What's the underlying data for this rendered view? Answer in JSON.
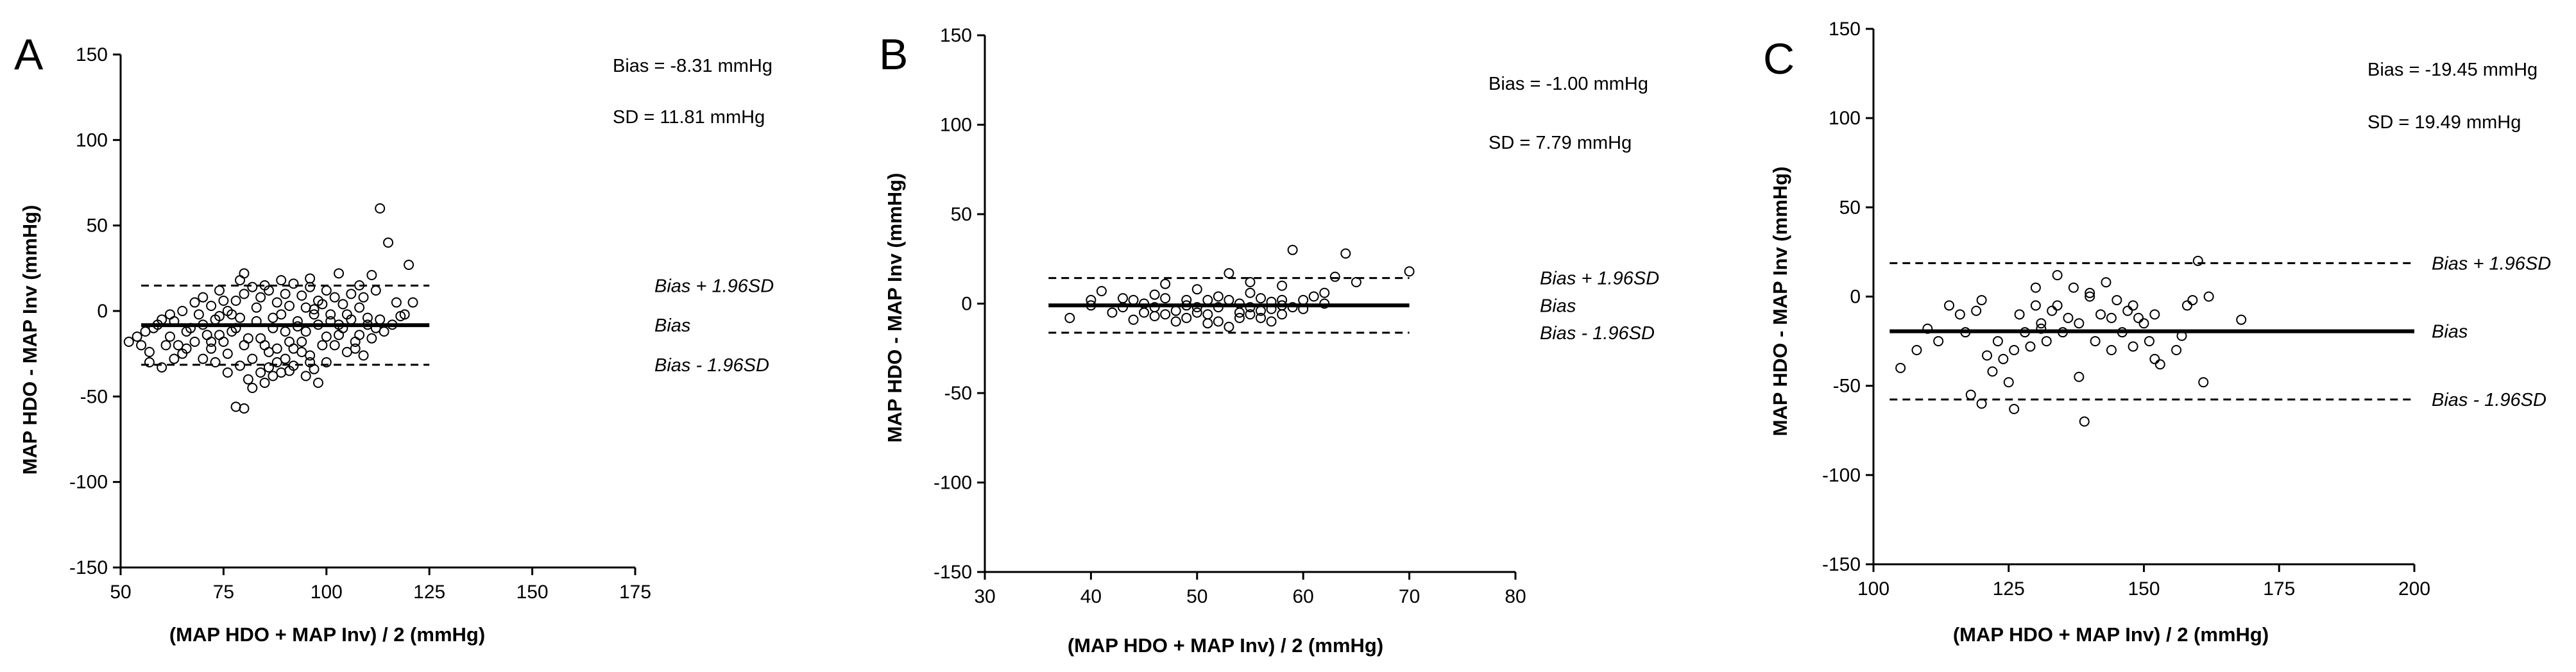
{
  "figure": {
    "description_label": "Bland-Altman plots"
  },
  "chart_data": [
    {
      "type": "scatter",
      "panel": "A",
      "xlabel": "(MAP HDO + MAP Inv) / 2 (mmHg)",
      "ylabel": "MAP HDO - MAP Inv (mmHg)",
      "xlim": [
        50,
        175
      ],
      "ylim": [
        -150,
        150
      ],
      "xticks": [
        50,
        75,
        100,
        125,
        150,
        175
      ],
      "yticks": [
        -150,
        -100,
        -50,
        0,
        50,
        100,
        150
      ],
      "bias": -8.31,
      "sd": 11.81,
      "upper_loa": 14.84,
      "lower_loa": -31.46,
      "line_span": [
        55,
        125
      ],
      "annotations": {
        "bias": "Bias = -8.31 mmHg",
        "sd": "SD = 11.81 mmHg"
      },
      "line_labels": {
        "upper": "Bias + 1.96SD",
        "mean": "Bias",
        "lower": "Bias - 1.96SD"
      },
      "points": [
        [
          113,
          60
        ],
        [
          115,
          40
        ],
        [
          120,
          27
        ],
        [
          111,
          21
        ],
        [
          80,
          22
        ],
        [
          79,
          18
        ],
        [
          89,
          18
        ],
        [
          96,
          19
        ],
        [
          103,
          22
        ],
        [
          112,
          12
        ],
        [
          108,
          15
        ],
        [
          117,
          5
        ],
        [
          119,
          -2
        ],
        [
          121,
          5
        ],
        [
          116,
          -8
        ],
        [
          78,
          -56
        ],
        [
          80,
          -57
        ],
        [
          82,
          -45
        ],
        [
          85,
          -42
        ],
        [
          87,
          -38
        ],
        [
          91,
          -35
        ],
        [
          95,
          -38
        ],
        [
          98,
          -42
        ],
        [
          73,
          -30
        ],
        [
          70,
          -28
        ],
        [
          65,
          -25
        ],
        [
          60,
          -33
        ],
        [
          57,
          -30
        ],
        [
          55,
          -20
        ],
        [
          52,
          -18
        ],
        [
          58,
          -10
        ],
        [
          60,
          -5
        ],
        [
          62,
          -2
        ],
        [
          65,
          0
        ],
        [
          68,
          5
        ],
        [
          70,
          8
        ],
        [
          72,
          3
        ],
        [
          74,
          -3
        ],
        [
          76,
          0
        ],
        [
          78,
          6
        ],
        [
          80,
          10
        ],
        [
          82,
          14
        ],
        [
          84,
          8
        ],
        [
          86,
          12
        ],
        [
          88,
          5
        ],
        [
          90,
          10
        ],
        [
          92,
          16
        ],
        [
          94,
          9
        ],
        [
          96,
          14
        ],
        [
          98,
          6
        ],
        [
          100,
          12
        ],
        [
          102,
          8
        ],
        [
          104,
          4
        ],
        [
          106,
          10
        ],
        [
          108,
          2
        ],
        [
          110,
          -4
        ],
        [
          112,
          -10
        ],
        [
          114,
          -12
        ],
        [
          62,
          -15
        ],
        [
          64,
          -20
        ],
        [
          66,
          -12
        ],
        [
          68,
          -18
        ],
        [
          70,
          -8
        ],
        [
          72,
          -22
        ],
        [
          74,
          -14
        ],
        [
          76,
          -25
        ],
        [
          78,
          -10
        ],
        [
          80,
          -20
        ],
        [
          82,
          -28
        ],
        [
          84,
          -16
        ],
        [
          86,
          -24
        ],
        [
          88,
          -30
        ],
        [
          90,
          -12
        ],
        [
          92,
          -22
        ],
        [
          94,
          -18
        ],
        [
          96,
          -26
        ],
        [
          98,
          -8
        ],
        [
          100,
          -15
        ],
        [
          102,
          -20
        ],
        [
          104,
          -10
        ],
        [
          106,
          -5
        ],
        [
          108,
          -14
        ],
        [
          110,
          -8
        ],
        [
          56,
          -12
        ],
        [
          59,
          -8
        ],
        [
          61,
          -20
        ],
        [
          63,
          -6
        ],
        [
          67,
          -10
        ],
        [
          69,
          -2
        ],
        [
          71,
          -14
        ],
        [
          73,
          -5
        ],
        [
          75,
          -18
        ],
        [
          77,
          -12
        ],
        [
          79,
          -4
        ],
        [
          81,
          -16
        ],
        [
          83,
          -6
        ],
        [
          85,
          -20
        ],
        [
          87,
          -10
        ],
        [
          89,
          -2
        ],
        [
          91,
          -18
        ],
        [
          93,
          -6
        ],
        [
          95,
          -12
        ],
        [
          97,
          -2
        ],
        [
          99,
          -20
        ],
        [
          101,
          -6
        ],
        [
          103,
          -14
        ],
        [
          105,
          -24
        ],
        [
          107,
          -18
        ],
        [
          109,
          -26
        ],
        [
          111,
          -16
        ],
        [
          88,
          -22
        ],
        [
          90,
          -28
        ],
        [
          92,
          -32
        ],
        [
          94,
          -24
        ],
        [
          96,
          -30
        ],
        [
          86,
          -33
        ],
        [
          84,
          -36
        ],
        [
          76,
          -36
        ],
        [
          72,
          -18
        ],
        [
          66,
          -22
        ],
        [
          63,
          -28
        ],
        [
          75,
          6
        ],
        [
          77,
          -2
        ],
        [
          83,
          2
        ],
        [
          87,
          -4
        ],
        [
          91,
          3
        ],
        [
          93,
          -9
        ],
        [
          97,
          1
        ],
        [
          99,
          4
        ],
        [
          101,
          -2
        ],
        [
          79,
          -32
        ],
        [
          81,
          -40
        ],
        [
          89,
          -36
        ],
        [
          97,
          -34
        ],
        [
          100,
          -30
        ],
        [
          54,
          -15
        ],
        [
          57,
          -24
        ],
        [
          74,
          12
        ],
        [
          85,
          15
        ],
        [
          95,
          2
        ],
        [
          105,
          -2
        ],
        [
          109,
          8
        ],
        [
          113,
          -5
        ],
        [
          118,
          -3
        ],
        [
          103,
          -8
        ],
        [
          107,
          -22
        ]
      ]
    },
    {
      "type": "scatter",
      "panel": "B",
      "xlabel": "(MAP HDO + MAP Inv) / 2 (mmHg)",
      "ylabel": "MAP HDO - MAP Inv (mmHg)",
      "xlim": [
        30,
        80
      ],
      "ylim": [
        -150,
        150
      ],
      "xticks": [
        30,
        40,
        50,
        60,
        70,
        80
      ],
      "yticks": [
        -150,
        -100,
        -50,
        0,
        50,
        100,
        150
      ],
      "bias": -1.0,
      "sd": 7.79,
      "upper_loa": 14.27,
      "lower_loa": -16.27,
      "line_span": [
        36,
        70
      ],
      "annotations": {
        "bias": "Bias = -1.00 mmHg",
        "sd": "SD = 7.79 mmHg"
      },
      "line_labels": {
        "upper": "Bias + 1.96SD",
        "mean": "Bias",
        "lower": "Bias - 1.96SD"
      },
      "points": [
        [
          59,
          30
        ],
        [
          64,
          28
        ],
        [
          70,
          18
        ],
        [
          65,
          12
        ],
        [
          63,
          15
        ],
        [
          53,
          17
        ],
        [
          55,
          12
        ],
        [
          58,
          10
        ],
        [
          47,
          11
        ],
        [
          50,
          8
        ],
        [
          41,
          7
        ],
        [
          43,
          3
        ],
        [
          40,
          -1
        ],
        [
          42,
          -5
        ],
        [
          44,
          -9
        ],
        [
          38,
          -8
        ],
        [
          46,
          -2
        ],
        [
          48,
          -4
        ],
        [
          49,
          2
        ],
        [
          51,
          -6
        ],
        [
          52,
          -10
        ],
        [
          53,
          -13
        ],
        [
          54,
          -8
        ],
        [
          55,
          -2
        ],
        [
          56,
          -4
        ],
        [
          57,
          1
        ],
        [
          58,
          -6
        ],
        [
          60,
          2
        ],
        [
          61,
          4
        ],
        [
          62,
          6
        ],
        [
          45,
          0
        ],
        [
          47,
          -6
        ],
        [
          49,
          -8
        ],
        [
          50,
          -2
        ],
        [
          52,
          4
        ],
        [
          54,
          -5
        ],
        [
          56,
          3
        ],
        [
          58,
          -1
        ],
        [
          60,
          -3
        ],
        [
          46,
          5
        ],
        [
          48,
          -10
        ],
        [
          51,
          -11
        ],
        [
          53,
          2
        ],
        [
          55,
          6
        ],
        [
          57,
          -3
        ],
        [
          59,
          -2
        ],
        [
          44,
          2
        ],
        [
          45,
          -5
        ],
        [
          47,
          3
        ],
        [
          50,
          -5
        ],
        [
          52,
          -2
        ],
        [
          54,
          0
        ],
        [
          55,
          -6
        ],
        [
          56,
          -8
        ],
        [
          57,
          -10
        ],
        [
          58,
          2
        ],
        [
          62,
          0
        ],
        [
          40,
          2
        ],
        [
          43,
          -2
        ],
        [
          46,
          -7
        ],
        [
          49,
          -1
        ],
        [
          51,
          2
        ]
      ]
    },
    {
      "type": "scatter",
      "panel": "C",
      "xlabel": "(MAP HDO + MAP Inv) / 2 (mmHg)",
      "ylabel": "MAP HDO - MAP Inv (mmHg)",
      "xlim": [
        100,
        200
      ],
      "ylim": [
        -150,
        150
      ],
      "xticks": [
        100,
        125,
        150,
        175,
        200
      ],
      "yticks": [
        -150,
        -100,
        -50,
        0,
        50,
        100,
        150
      ],
      "bias": -19.45,
      "sd": 19.49,
      "upper_loa": 18.75,
      "lower_loa": -57.65,
      "line_span": [
        103,
        200
      ],
      "annotations": {
        "bias": "Bias = -19.45 mmHg",
        "sd": "SD = 19.49 mmHg"
      },
      "line_labels": {
        "upper": "Bias + 1.96SD",
        "mean": "Bias",
        "lower": "Bias - 1.96SD"
      },
      "points": [
        [
          160,
          20
        ],
        [
          158,
          -5
        ],
        [
          162,
          0
        ],
        [
          168,
          -13
        ],
        [
          161,
          -48
        ],
        [
          156,
          -30
        ],
        [
          152,
          -10
        ],
        [
          150,
          -15
        ],
        [
          148,
          -5
        ],
        [
          146,
          -20
        ],
        [
          144,
          -30
        ],
        [
          142,
          -10
        ],
        [
          140,
          0
        ],
        [
          138,
          -15
        ],
        [
          136,
          -12
        ],
        [
          134,
          -5
        ],
        [
          132,
          -25
        ],
        [
          130,
          -5
        ],
        [
          128,
          -20
        ],
        [
          126,
          -30
        ],
        [
          124,
          -35
        ],
        [
          122,
          -42
        ],
        [
          120,
          -60
        ],
        [
          118,
          -55
        ],
        [
          116,
          -10
        ],
        [
          114,
          -5
        ],
        [
          112,
          -25
        ],
        [
          110,
          -18
        ],
        [
          108,
          -30
        ],
        [
          105,
          -40
        ],
        [
          139,
          -70
        ],
        [
          126,
          -63
        ],
        [
          130,
          5
        ],
        [
          134,
          12
        ],
        [
          137,
          5
        ],
        [
          140,
          2
        ],
        [
          143,
          8
        ],
        [
          145,
          -2
        ],
        [
          147,
          -8
        ],
        [
          149,
          -12
        ],
        [
          151,
          -25
        ],
        [
          153,
          -38
        ],
        [
          157,
          -22
        ],
        [
          159,
          -2
        ],
        [
          135,
          -20
        ],
        [
          133,
          -8
        ],
        [
          131,
          -15
        ],
        [
          129,
          -28
        ],
        [
          127,
          -10
        ],
        [
          123,
          -25
        ],
        [
          121,
          -33
        ],
        [
          119,
          -8
        ],
        [
          117,
          -20
        ],
        [
          141,
          -25
        ],
        [
          144,
          -12
        ],
        [
          148,
          -28
        ],
        [
          152,
          -35
        ],
        [
          138,
          -45
        ],
        [
          120,
          -2
        ],
        [
          125,
          -48
        ],
        [
          131,
          -18
        ]
      ]
    }
  ]
}
